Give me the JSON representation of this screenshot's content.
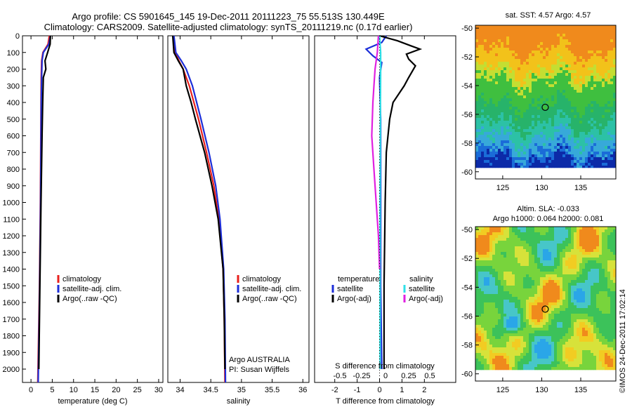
{
  "titles": {
    "line1": "Argo profile: CS 5901645_145 19-Dec-2011 20111223_75 55.513S 130.449E",
    "line2": "Climatology: CARS2009. Satellite-adjusted climatology: synTS_20111219.nc (0.17d earlier)"
  },
  "map_titles": {
    "sst": "sat. SST: 4.57 Argo: 4.57",
    "sla1": "Altim. SLA: -0.033",
    "sla2": "Argo h1000: 0.064 h2000: 0.081"
  },
  "footer": {
    "credit": "©IMOS 24-Dec-2011 17:02:14"
  },
  "colors": {
    "climatology": "#e8201c",
    "satellite": "#1c2ed8",
    "argo": "#000000",
    "sat_salinity": "#2fe0e8",
    "argo_salinity": "#e020e0"
  },
  "chart_data": [
    {
      "type": "line",
      "xlabel": "temperature (deg C)",
      "ylabel": "",
      "xlim": [
        -2,
        31
      ],
      "xticks": [
        0,
        5,
        10,
        15,
        20,
        25,
        30
      ],
      "ylim": [
        2080,
        0
      ],
      "yticks": [
        0,
        100,
        200,
        300,
        400,
        500,
        600,
        700,
        800,
        900,
        1000,
        1100,
        1200,
        1300,
        1400,
        1500,
        1600,
        1700,
        1800,
        1900,
        2000
      ],
      "legend": [
        "climatology",
        "satellite-adj. clim.",
        "Argo(..raw -QC)"
      ],
      "series": [
        {
          "name": "climatology",
          "color": "#e8201c",
          "depth": [
            0,
            50,
            100,
            150,
            250,
            400,
            600,
            1000,
            1500,
            2080
          ],
          "values": [
            4.3,
            4.0,
            2.8,
            2.5,
            2.4,
            2.35,
            2.3,
            2.2,
            2.0,
            1.6
          ]
        },
        {
          "name": "satellite-adj. clim.",
          "color": "#1c2ed8",
          "depth": [
            0,
            50,
            100,
            150,
            250,
            400,
            600,
            1000,
            1500,
            2080
          ],
          "values": [
            4.57,
            4.2,
            2.9,
            2.6,
            2.5,
            2.4,
            2.35,
            2.25,
            2.05,
            1.7
          ]
        },
        {
          "name": "Argo(..raw -QC)",
          "color": "#000000",
          "depth": [
            0,
            50,
            100,
            150,
            200,
            250,
            400,
            600,
            1000,
            1500,
            2000
          ],
          "values": [
            4.57,
            4.5,
            3.9,
            3.3,
            3.5,
            2.9,
            2.75,
            2.6,
            2.35,
            2.1,
            1.85
          ]
        }
      ]
    },
    {
      "type": "line",
      "xlabel": "salinity",
      "ylabel": "",
      "xlim": [
        33.8,
        36.1
      ],
      "xticks": [
        34,
        34.5,
        35,
        35.5,
        36
      ],
      "ylim": [
        2080,
        0
      ],
      "legend": [
        "climatology",
        "satellite-adj. clim.",
        "Argo(..raw -QC)"
      ],
      "annotations": [
        "Argo AUSTRALIA",
        "PI: Susan Wijffels"
      ],
      "series": [
        {
          "name": "climatology",
          "color": "#e8201c",
          "depth": [
            0,
            100,
            150,
            200,
            300,
            500,
            700,
            900,
            1100,
            1400,
            1700,
            2080
          ],
          "values": [
            33.89,
            33.92,
            33.98,
            34.05,
            34.15,
            34.3,
            34.43,
            34.55,
            34.63,
            34.7,
            34.72,
            34.73
          ]
        },
        {
          "name": "satellite-adj. clim.",
          "color": "#1c2ed8",
          "depth": [
            0,
            100,
            150,
            200,
            300,
            500,
            700,
            900,
            1100,
            1400,
            1700,
            2080
          ],
          "values": [
            33.9,
            33.93,
            34.02,
            34.1,
            34.2,
            34.34,
            34.47,
            34.58,
            34.65,
            34.71,
            34.73,
            34.74
          ]
        },
        {
          "name": "Argo(..raw -QC)",
          "color": "#000000",
          "depth": [
            0,
            100,
            150,
            200,
            300,
            400,
            500,
            700,
            900,
            1100,
            1400,
            1700,
            2000
          ],
          "values": [
            33.88,
            33.9,
            33.97,
            34.05,
            34.1,
            34.18,
            34.25,
            34.4,
            34.52,
            34.62,
            34.7,
            34.72,
            34.73
          ]
        }
      ]
    },
    {
      "type": "line",
      "xlabel": "T difference from climatology",
      "xlabel_top": "S difference from climatology",
      "xlim": [
        -2.9,
        3.4
      ],
      "xticks": [
        -2,
        -1,
        0,
        1,
        2
      ],
      "xticks_salinity": [
        -0.5,
        -0.25,
        0,
        0.25,
        0.5
      ],
      "ylim": [
        2080,
        0
      ],
      "legend_temperature": {
        "heading": "temperature",
        "items": [
          "satellite",
          "Argo(-adj)"
        ]
      },
      "legend_salinity": {
        "heading": "salinity",
        "items": [
          "satellite",
          "Argo(-adj)"
        ]
      },
      "series": [
        {
          "name": "temperature satellite",
          "color": "#1c2ed8",
          "depth": [
            0,
            40,
            80,
            120,
            160,
            250,
            500,
            1000,
            1500,
            2000
          ],
          "values": [
            0.3,
            0.1,
            -0.6,
            -0.3,
            0.1,
            0.0,
            0.05,
            0.05,
            0.05,
            0.1
          ]
        },
        {
          "name": "temperature Argo(-adj)",
          "color": "#000000",
          "depth": [
            0,
            30,
            60,
            80,
            110,
            140,
            180,
            250,
            300,
            400,
            500,
            700,
            1000,
            1500,
            2000
          ],
          "values": [
            0.0,
            0.8,
            1.4,
            1.8,
            1.2,
            1.3,
            1.6,
            1.3,
            1.1,
            0.6,
            0.45,
            0.3,
            0.25,
            0.2,
            0.2
          ]
        },
        {
          "name": "salinity satellite",
          "color": "#2fe0e8",
          "depth": [
            0,
            100,
            200,
            400,
            700,
            1000,
            1500,
            2000
          ],
          "values": [
            0.0,
            0.05,
            0.05,
            0.04,
            0.03,
            0.02,
            0.02,
            0.02
          ]
        },
        {
          "name": "salinity Argo(-adj)",
          "color": "#e020e0",
          "depth": [
            0,
            100,
            200,
            300,
            400,
            600,
            800,
            1000,
            1200,
            1400
          ],
          "values": [
            -0.05,
            -0.1,
            -0.2,
            -0.25,
            -0.3,
            -0.35,
            -0.25,
            -0.15,
            -0.05,
            0.0
          ]
        }
      ]
    },
    {
      "type": "heatmap",
      "title": "sat. SST: 4.57 Argo: 4.57",
      "xticks": [
        125,
        130,
        135
      ],
      "yticks": [
        -50,
        -52,
        -54,
        -56,
        -58,
        -60
      ],
      "xlim": [
        121.5,
        139.5
      ],
      "ylim": [
        -60.5,
        -49.8
      ],
      "marker": {
        "lon": 130.449,
        "lat": -55.513
      }
    },
    {
      "type": "heatmap",
      "title": "Altim. SLA: -0.033",
      "xticks": [
        125,
        130,
        135
      ],
      "yticks": [
        -50,
        -52,
        -54,
        -56,
        -58,
        -60
      ],
      "xlim": [
        121.5,
        139.5
      ],
      "ylim": [
        -60.5,
        -49.8
      ],
      "marker": {
        "lon": 130.449,
        "lat": -55.513
      }
    }
  ]
}
